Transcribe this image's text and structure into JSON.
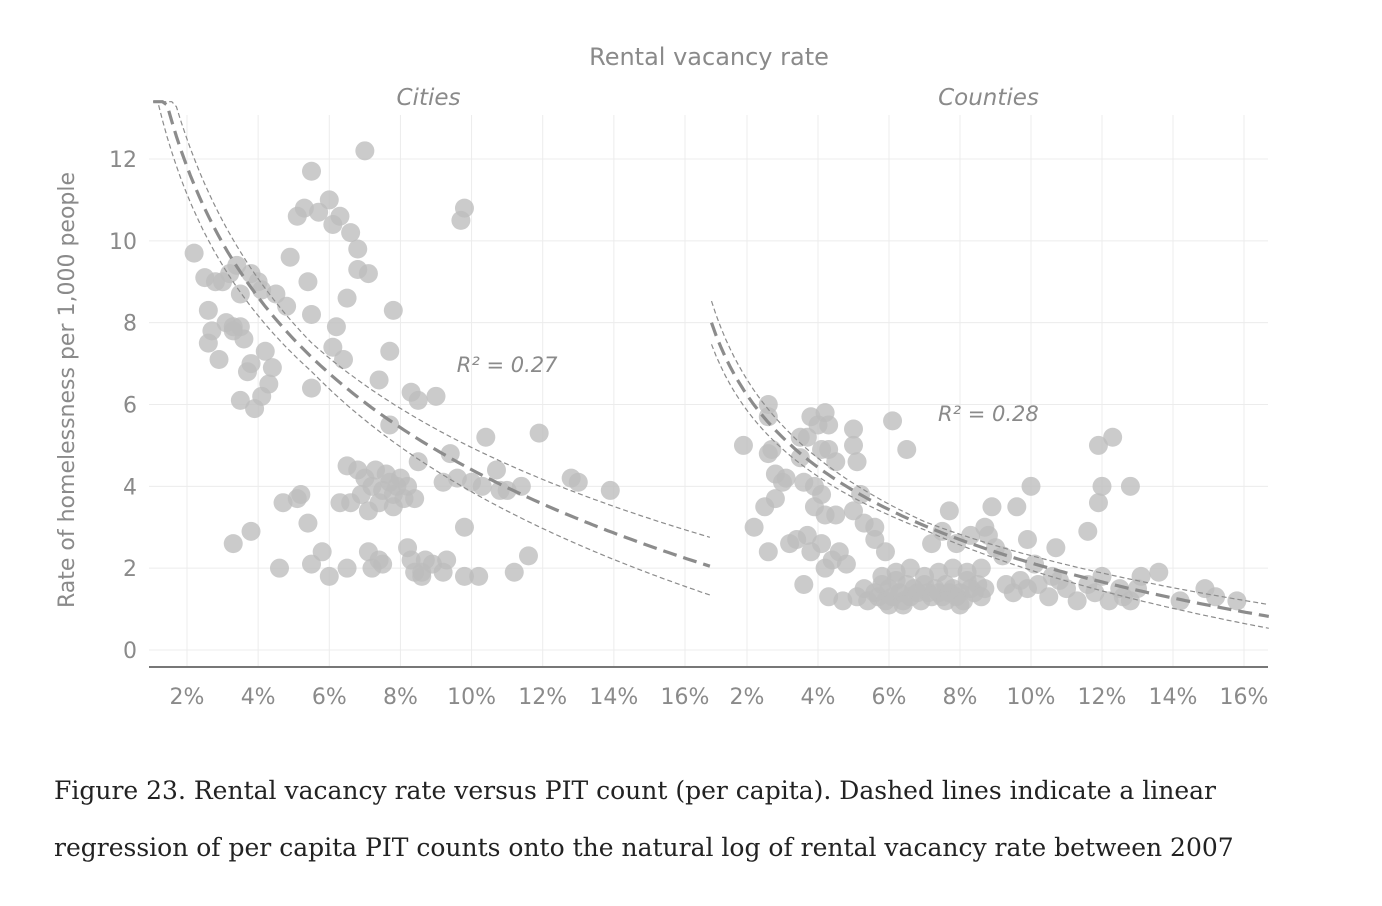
{
  "chart_data": {
    "type": "scatter",
    "title": "Rental vacancy rate",
    "ylabel": "Rate of homelessness per 1,000 people",
    "ylim": [
      0,
      13
    ],
    "yticks": [
      0,
      2,
      4,
      6,
      8,
      10,
      12
    ],
    "ytick_labels": [
      "0",
      "2",
      "4",
      "6",
      "8",
      "10",
      "12"
    ],
    "xlim": [
      1.0,
      16.7
    ],
    "xticks": [
      2,
      4,
      6,
      8,
      10,
      12,
      14,
      16
    ],
    "xtick_labels": [
      "2%",
      "4%",
      "6%",
      "8%",
      "10%",
      "12%",
      "14%",
      "16%"
    ],
    "grid": true,
    "colors": {
      "points": "#bdbdbd",
      "fit_line": "#8c8c8c",
      "axis": "#777777",
      "grid": "#ececec",
      "text": "#8a8a8a"
    },
    "panels": [
      {
        "name": "Cities",
        "r2_label": "R² = 0.27",
        "r2_position_data": [
          11.0,
          6.8
        ],
        "fit": {
          "a": 15.0,
          "b": -4.6,
          "band_base": 0.35,
          "band_scale": 0.32,
          "band_center": 5.5,
          "x_start": 1.05,
          "x_end": 16.7
        },
        "points": [
          [
            2.2,
            9.7
          ],
          [
            2.5,
            9.1
          ],
          [
            2.6,
            8.3
          ],
          [
            2.7,
            7.8
          ],
          [
            2.8,
            9.0
          ],
          [
            2.9,
            7.1
          ],
          [
            3.0,
            9.0
          ],
          [
            3.1,
            8.0
          ],
          [
            3.2,
            9.2
          ],
          [
            3.3,
            7.8
          ],
          [
            3.4,
            9.4
          ],
          [
            3.5,
            8.7
          ],
          [
            3.6,
            7.6
          ],
          [
            3.7,
            6.8
          ],
          [
            3.8,
            7.0
          ],
          [
            3.9,
            5.9
          ],
          [
            3.5,
            6.1
          ],
          [
            4.0,
            9.0
          ],
          [
            4.1,
            8.8
          ],
          [
            4.2,
            7.3
          ],
          [
            4.4,
            6.9
          ],
          [
            4.5,
            8.7
          ],
          [
            4.8,
            8.4
          ],
          [
            4.9,
            9.6
          ],
          [
            3.5,
            7.9
          ],
          [
            4.1,
            6.2
          ],
          [
            4.3,
            6.5
          ],
          [
            3.8,
            9.2
          ],
          [
            2.6,
            7.5
          ],
          [
            3.3,
            7.9
          ],
          [
            5.1,
            10.6
          ],
          [
            5.3,
            10.8
          ],
          [
            5.5,
            11.7
          ],
          [
            5.7,
            10.7
          ],
          [
            6.0,
            11.0
          ],
          [
            6.1,
            10.4
          ],
          [
            6.3,
            10.6
          ],
          [
            6.6,
            10.2
          ],
          [
            6.8,
            9.8
          ],
          [
            7.0,
            12.2
          ],
          [
            6.8,
            9.3
          ],
          [
            7.1,
            9.2
          ],
          [
            6.5,
            8.6
          ],
          [
            5.4,
            9.0
          ],
          [
            5.5,
            8.2
          ],
          [
            6.2,
            7.9
          ],
          [
            6.1,
            7.4
          ],
          [
            6.4,
            7.1
          ],
          [
            7.8,
            8.3
          ],
          [
            7.7,
            7.3
          ],
          [
            7.4,
            6.6
          ],
          [
            5.5,
            6.4
          ],
          [
            8.3,
            6.3
          ],
          [
            8.5,
            6.1
          ],
          [
            9.0,
            6.2
          ],
          [
            7.7,
            5.5
          ],
          [
            6.5,
            4.5
          ],
          [
            6.8,
            4.4
          ],
          [
            7.0,
            4.2
          ],
          [
            7.2,
            4.0
          ],
          [
            7.3,
            4.4
          ],
          [
            7.5,
            3.9
          ],
          [
            7.6,
            4.3
          ],
          [
            7.7,
            4.1
          ],
          [
            7.8,
            3.8
          ],
          [
            7.9,
            4.0
          ],
          [
            8.0,
            4.2
          ],
          [
            8.1,
            3.7
          ],
          [
            8.2,
            4.0
          ],
          [
            7.4,
            3.6
          ],
          [
            7.1,
            3.4
          ],
          [
            6.9,
            3.8
          ],
          [
            6.6,
            3.6
          ],
          [
            6.3,
            3.6
          ],
          [
            8.4,
            3.7
          ],
          [
            7.8,
            3.5
          ],
          [
            8.5,
            4.6
          ],
          [
            9.2,
            4.1
          ],
          [
            9.4,
            4.8
          ],
          [
            9.6,
            4.2
          ],
          [
            10.0,
            4.1
          ],
          [
            10.3,
            4.0
          ],
          [
            10.7,
            4.4
          ],
          [
            11.0,
            3.9
          ],
          [
            11.4,
            4.0
          ],
          [
            10.4,
            5.2
          ],
          [
            11.9,
            5.3
          ],
          [
            12.8,
            4.2
          ],
          [
            13.0,
            4.1
          ],
          [
            13.9,
            3.9
          ],
          [
            10.8,
            3.9
          ],
          [
            4.7,
            3.6
          ],
          [
            5.1,
            3.7
          ],
          [
            5.2,
            3.8
          ],
          [
            5.4,
            3.1
          ],
          [
            5.8,
            2.4
          ],
          [
            5.5,
            2.1
          ],
          [
            6.0,
            1.8
          ],
          [
            6.5,
            2.0
          ],
          [
            7.1,
            2.4
          ],
          [
            7.2,
            2.0
          ],
          [
            7.4,
            2.2
          ],
          [
            7.5,
            2.1
          ],
          [
            8.2,
            2.5
          ],
          [
            8.3,
            2.2
          ],
          [
            8.4,
            1.9
          ],
          [
            8.6,
            1.8
          ],
          [
            8.7,
            2.2
          ],
          [
            8.9,
            2.1
          ],
          [
            9.2,
            1.9
          ],
          [
            9.3,
            2.2
          ],
          [
            9.8,
            1.8
          ],
          [
            10.2,
            1.8
          ],
          [
            9.8,
            3.0
          ],
          [
            11.2,
            1.9
          ],
          [
            11.6,
            2.3
          ],
          [
            4.6,
            2.0
          ],
          [
            3.8,
            2.9
          ],
          [
            3.3,
            2.6
          ],
          [
            9.7,
            10.5
          ],
          [
            9.8,
            10.8
          ],
          [
            8.6,
            1.9
          ]
        ]
      },
      {
        "name": "Counties",
        "r2_label": "R² = 0.28",
        "r2_position_data": [
          8.8,
          5.6
        ],
        "fit": {
          "a": 8.0,
          "b": -2.55,
          "band_base": 0.1,
          "band_scale": 0.22,
          "band_center": 7.0,
          "x_start": 1.0,
          "x_end": 16.7
        },
        "points": [
          [
            1.9,
            5.0
          ],
          [
            2.6,
            6.0
          ],
          [
            2.6,
            5.7
          ],
          [
            2.7,
            4.9
          ],
          [
            2.6,
            4.8
          ],
          [
            2.8,
            4.3
          ],
          [
            3.0,
            4.1
          ],
          [
            3.1,
            4.2
          ],
          [
            2.5,
            3.5
          ],
          [
            2.8,
            3.7
          ],
          [
            2.2,
            3.0
          ],
          [
            2.6,
            2.4
          ],
          [
            3.2,
            2.6
          ],
          [
            3.4,
            2.7
          ],
          [
            3.5,
            5.2
          ],
          [
            3.5,
            4.7
          ],
          [
            3.6,
            4.1
          ],
          [
            3.7,
            5.2
          ],
          [
            3.8,
            5.7
          ],
          [
            3.9,
            4.0
          ],
          [
            4.0,
            5.5
          ],
          [
            4.1,
            4.9
          ],
          [
            4.2,
            5.8
          ],
          [
            4.3,
            5.5
          ],
          [
            4.3,
            4.9
          ],
          [
            4.5,
            4.6
          ],
          [
            4.1,
            3.8
          ],
          [
            3.9,
            3.5
          ],
          [
            4.2,
            3.3
          ],
          [
            4.5,
            3.3
          ],
          [
            3.7,
            2.8
          ],
          [
            3.8,
            2.4
          ],
          [
            4.1,
            2.6
          ],
          [
            4.2,
            2.0
          ],
          [
            4.4,
            2.2
          ],
          [
            4.6,
            2.4
          ],
          [
            4.8,
            2.1
          ],
          [
            3.6,
            1.6
          ],
          [
            4.3,
            1.3
          ],
          [
            4.7,
            1.2
          ],
          [
            5.0,
            5.4
          ],
          [
            5.0,
            5.0
          ],
          [
            5.1,
            4.6
          ],
          [
            5.2,
            3.8
          ],
          [
            5.0,
            3.4
          ],
          [
            5.3,
            3.1
          ],
          [
            5.6,
            3.0
          ],
          [
            6.1,
            5.6
          ],
          [
            6.5,
            4.9
          ],
          [
            5.6,
            2.7
          ],
          [
            5.9,
            2.4
          ],
          [
            5.1,
            1.3
          ],
          [
            5.3,
            1.5
          ],
          [
            5.4,
            1.2
          ],
          [
            5.6,
            1.4
          ],
          [
            5.7,
            1.3
          ],
          [
            5.8,
            1.6
          ],
          [
            5.9,
            1.2
          ],
          [
            6.0,
            1.5
          ],
          [
            6.1,
            1.3
          ],
          [
            6.2,
            1.7
          ],
          [
            6.3,
            1.4
          ],
          [
            6.4,
            1.2
          ],
          [
            6.5,
            1.6
          ],
          [
            6.6,
            1.3
          ],
          [
            6.7,
            1.5
          ],
          [
            6.8,
            1.4
          ],
          [
            6.9,
            1.2
          ],
          [
            7.0,
            1.6
          ],
          [
            7.1,
            1.4
          ],
          [
            7.2,
            1.3
          ],
          [
            7.3,
            1.5
          ],
          [
            7.4,
            1.4
          ],
          [
            7.5,
            1.3
          ],
          [
            7.6,
            1.6
          ],
          [
            7.7,
            1.4
          ],
          [
            7.8,
            1.5
          ],
          [
            7.9,
            1.3
          ],
          [
            8.0,
            1.4
          ],
          [
            8.1,
            1.2
          ],
          [
            8.2,
            1.7
          ],
          [
            8.3,
            1.5
          ],
          [
            8.4,
            1.4
          ],
          [
            8.5,
            1.6
          ],
          [
            8.6,
            1.3
          ],
          [
            8.7,
            1.5
          ],
          [
            5.8,
            1.8
          ],
          [
            6.2,
            1.9
          ],
          [
            6.6,
            2.0
          ],
          [
            7.0,
            1.8
          ],
          [
            7.4,
            1.9
          ],
          [
            7.8,
            2.0
          ],
          [
            8.2,
            1.9
          ],
          [
            8.6,
            2.0
          ],
          [
            6.0,
            1.1
          ],
          [
            6.4,
            1.1
          ],
          [
            7.6,
            1.2
          ],
          [
            8.0,
            1.1
          ],
          [
            7.2,
            2.6
          ],
          [
            7.5,
            2.9
          ],
          [
            7.7,
            3.4
          ],
          [
            7.9,
            2.6
          ],
          [
            8.3,
            2.8
          ],
          [
            8.7,
            3.0
          ],
          [
            8.9,
            3.5
          ],
          [
            8.8,
            2.8
          ],
          [
            9.0,
            2.5
          ],
          [
            9.2,
            2.3
          ],
          [
            9.6,
            3.5
          ],
          [
            10.0,
            4.0
          ],
          [
            9.9,
            2.7
          ],
          [
            10.1,
            2.1
          ],
          [
            10.7,
            2.5
          ],
          [
            11.6,
            2.9
          ],
          [
            11.9,
            3.6
          ],
          [
            12.0,
            4.0
          ],
          [
            11.9,
            5.0
          ],
          [
            12.3,
            5.2
          ],
          [
            12.8,
            4.0
          ],
          [
            9.3,
            1.6
          ],
          [
            9.5,
            1.4
          ],
          [
            9.7,
            1.7
          ],
          [
            9.9,
            1.5
          ],
          [
            10.2,
            1.6
          ],
          [
            10.5,
            1.3
          ],
          [
            10.8,
            1.7
          ],
          [
            11.0,
            1.5
          ],
          [
            11.3,
            1.2
          ],
          [
            11.6,
            1.6
          ],
          [
            12.0,
            1.8
          ],
          [
            12.2,
            1.2
          ],
          [
            12.5,
            1.5
          ],
          [
            12.8,
            1.2
          ],
          [
            13.1,
            1.8
          ],
          [
            13.6,
            1.9
          ],
          [
            14.2,
            1.2
          ],
          [
            14.9,
            1.5
          ],
          [
            15.2,
            1.3
          ],
          [
            15.8,
            1.2
          ],
          [
            10.6,
            1.8
          ],
          [
            11.8,
            1.4
          ],
          [
            12.6,
            1.3
          ],
          [
            13.0,
            1.5
          ]
        ]
      }
    ]
  },
  "caption": {
    "line1": "Figure 23.  Rental vacancy rate versus PIT count (per capita). Dashed lines indicate a linear",
    "line2": "regression of per capita PIT counts onto the natural log of rental vacancy rate between 2007"
  }
}
